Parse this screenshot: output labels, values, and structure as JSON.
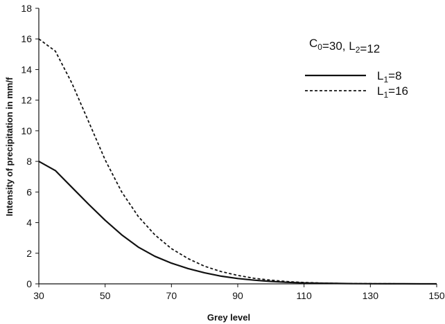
{
  "chart_data": {
    "type": "line",
    "title": "",
    "xlabel": "Grey level",
    "ylabel": "Intensity of precipitation in mm/f",
    "xlim": [
      30,
      150
    ],
    "ylim": [
      0,
      18
    ],
    "x_ticks": [
      30,
      50,
      70,
      90,
      110,
      130,
      150
    ],
    "y_ticks": [
      0,
      2,
      4,
      6,
      8,
      10,
      12,
      14,
      16,
      18
    ],
    "grid": false,
    "legend_position": "top-right",
    "annotation": {
      "parts": [
        {
          "text": "C",
          "sub": "0"
        },
        {
          "text": "=30, L",
          "sub": "2"
        },
        {
          "text": "=12",
          "sub": ""
        }
      ]
    },
    "x": [
      30,
      35,
      40,
      45,
      50,
      55,
      60,
      65,
      70,
      75,
      80,
      85,
      90,
      95,
      100,
      105,
      110,
      115,
      120,
      125,
      130,
      135,
      140,
      145,
      150
    ],
    "series": [
      {
        "name": "L1=8",
        "label_main": "L",
        "label_sub": "1",
        "label_tail": "=8",
        "style": "solid",
        "color": "#111111",
        "values": [
          8.0,
          7.4,
          6.3,
          5.2,
          4.15,
          3.2,
          2.4,
          1.8,
          1.35,
          1.0,
          0.72,
          0.5,
          0.35,
          0.24,
          0.16,
          0.1,
          0.06,
          0.04,
          0.025,
          0.015,
          0.01,
          0.006,
          0.004,
          0.002,
          0.001
        ]
      },
      {
        "name": "L1=16",
        "label_main": "L",
        "label_sub": "1",
        "label_tail": "=16",
        "style": "dashed",
        "color": "#111111",
        "values": [
          16.0,
          15.2,
          13.1,
          10.6,
          8.1,
          6.0,
          4.4,
          3.2,
          2.3,
          1.65,
          1.15,
          0.8,
          0.55,
          0.36,
          0.24,
          0.15,
          0.09,
          0.055,
          0.033,
          0.02,
          0.012,
          0.007,
          0.004,
          0.002,
          0.001
        ]
      }
    ]
  }
}
